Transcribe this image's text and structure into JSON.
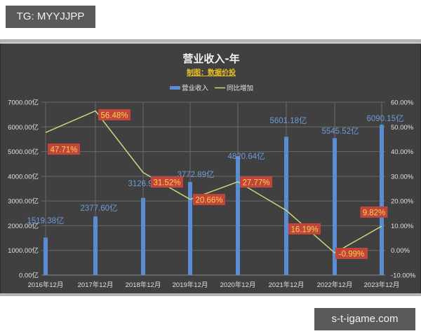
{
  "watermarks": {
    "top": "TG: MYYJJPP",
    "bottom": "s-t-igame.com"
  },
  "colors": {
    "background": "#404040",
    "bar": "#5b8bd0",
    "line": "#c9d87a",
    "bar_label": "#6f9bd8",
    "pct_label_bg": "#c0453a",
    "pct_label_text": "#ffd04a",
    "subtitle": "#e8c020"
  },
  "chart_data": {
    "type": "bar",
    "title": "营业收入-年",
    "subtitle": "制图：数据价投",
    "categories": [
      "2016年12月",
      "2017年12月",
      "2018年12月",
      "2019年12月",
      "2020年12月",
      "2021年12月",
      "2022年12月",
      "2023年12月"
    ],
    "series": [
      {
        "name": "营业收入",
        "type": "bar",
        "axis": "left",
        "values": [
          1519.38,
          2377.6,
          3126.94,
          3772.89,
          4820.64,
          5601.18,
          5545.52,
          6090.15
        ],
        "labels": [
          "1519.38亿",
          "2377.60亿",
          "3126.94亿",
          "3772.89亿",
          "4820.64亿",
          "5601.18亿",
          "5545.52亿",
          "6090.15亿"
        ]
      },
      {
        "name": "同比增加",
        "type": "line",
        "axis": "right",
        "values": [
          47.71,
          56.48,
          31.52,
          20.66,
          27.77,
          16.19,
          -0.99,
          9.82
        ],
        "labels": [
          "47.71%",
          "56.48%",
          "31.52%",
          "20.66%",
          "27.77%",
          "16.19%",
          "-0.99%",
          "9.82%"
        ]
      }
    ],
    "left_axis": {
      "ticks": [
        "0.00亿",
        "1000.00亿",
        "2000.00亿",
        "3000.00亿",
        "4000.00亿",
        "5000.00亿",
        "6000.00亿",
        "7000.00亿"
      ],
      "ylim": [
        0,
        7000
      ],
      "unit": "亿"
    },
    "right_axis": {
      "ticks": [
        "-10.00%",
        "0.00%",
        "10.00%",
        "20.00%",
        "30.00%",
        "40.00%",
        "50.00%",
        "60.00%"
      ],
      "ylim": [
        -10,
        60
      ],
      "unit": "%"
    },
    "legend": {
      "position": "top",
      "entries": [
        "营业收入",
        "同比增加"
      ]
    },
    "grid": true
  }
}
